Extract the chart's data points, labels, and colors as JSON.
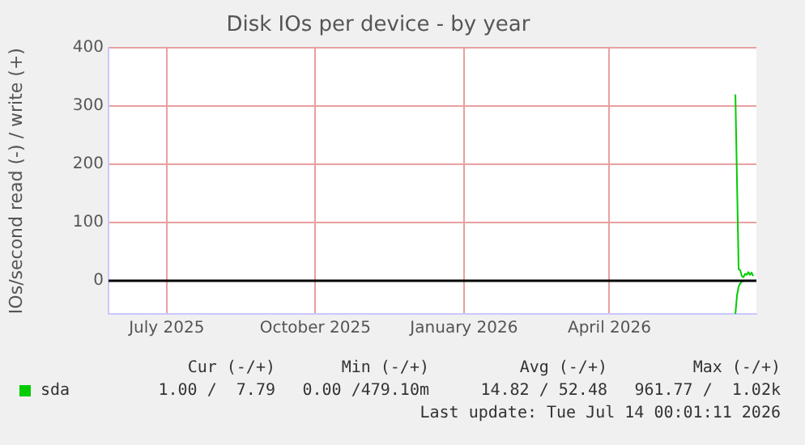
{
  "chart_data": {
    "type": "line",
    "title": "Disk IOs per device - by year",
    "ylabel": "IOs/second read (-) / write (+)",
    "xlim": [
      "2025-05-26",
      "2026-07-01"
    ],
    "xticks": [
      {
        "value": "2025-07-01",
        "label": "July 2025"
      },
      {
        "value": "2025-10-01",
        "label": "October 2025"
      },
      {
        "value": "2026-01-01",
        "label": "January 2026"
      },
      {
        "value": "2026-04-01",
        "label": "April 2026"
      }
    ],
    "ylim": [
      -57,
      400
    ],
    "yticks": [
      0,
      100,
      200,
      300,
      400
    ],
    "grid": true,
    "legend": "bottom left",
    "marker": "none",
    "ref_lines": [
      {
        "axis": "y",
        "value": 0,
        "color": "#000000"
      }
    ],
    "series": [
      {
        "name": "sda",
        "color": "#00cc00",
        "x": [
          "2026-06-18",
          "2026-06-20",
          "2026-06-21",
          "2026-06-22",
          "2026-06-23",
          "2026-06-24",
          "2026-06-25",
          "2026-06-26",
          "2026-06-27",
          "2026-06-28",
          "2026-06-29"
        ],
        "values": [
          320,
          20,
          18,
          8,
          6,
          12,
          10,
          15,
          10,
          14,
          8
        ]
      },
      {
        "color": "#00cc00",
        "x": [
          "2026-06-18",
          "2026-06-19",
          "2026-06-20",
          "2026-06-21",
          "2026-06-22",
          "2026-06-24",
          "2026-06-29"
        ],
        "values": [
          -57,
          -25,
          -10,
          -5,
          -1,
          0,
          0
        ]
      }
    ],
    "annotations": [
      "Cur (-/+)",
      "Min (-/+)",
      "Avg (-/+)",
      "Max (-/+)",
      "1.00 /  7.79",
      "0.00 /479.10m",
      "14.82 / 52.48",
      "961.77 /  1.02k",
      "Last update: Tue Jul 14 00:01:11 2026"
    ]
  }
}
